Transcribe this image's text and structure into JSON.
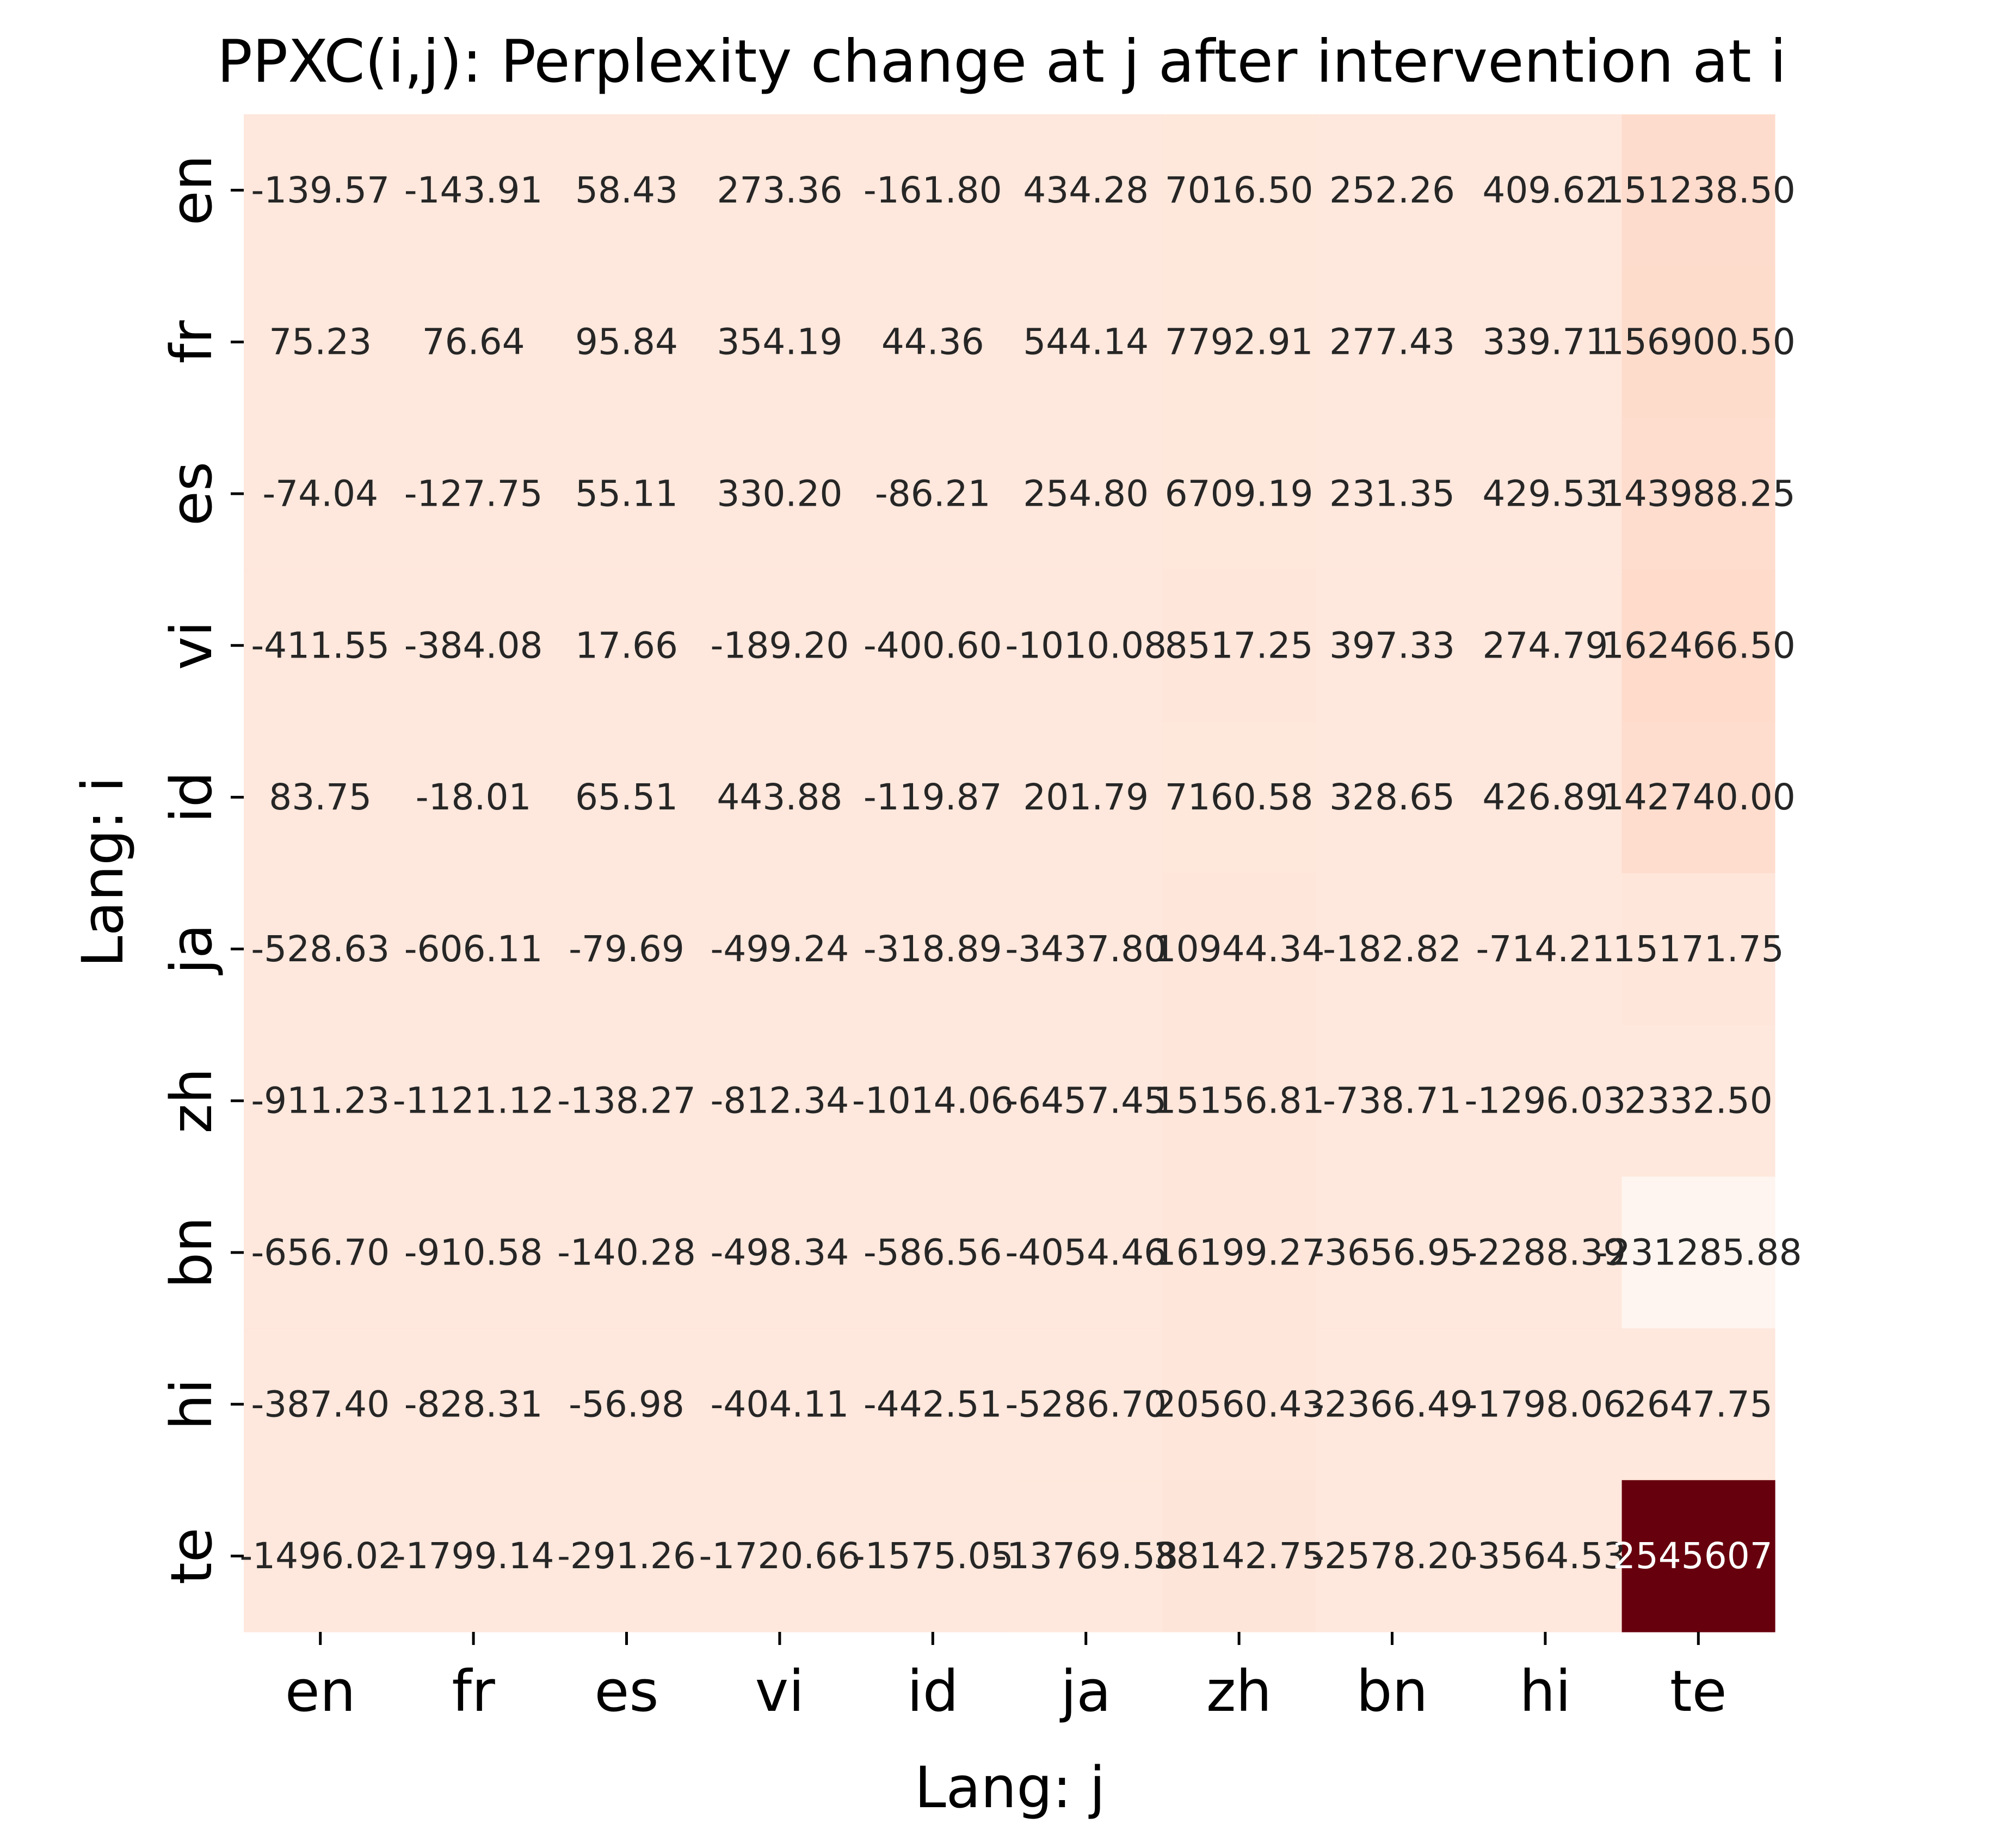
{
  "chart_data": {
    "type": "heatmap",
    "title": "PPXC(i,j): Perplexity change at j after intervention at i",
    "xlabel": "Lang: j",
    "ylabel": "Lang: i",
    "x_categories": [
      "en",
      "fr",
      "es",
      "vi",
      "id",
      "ja",
      "zh",
      "bn",
      "hi",
      "te"
    ],
    "y_categories": [
      "en",
      "fr",
      "es",
      "vi",
      "id",
      "ja",
      "zh",
      "bn",
      "hi",
      "te"
    ],
    "values": [
      [
        -139.57,
        -143.91,
        58.43,
        273.36,
        -161.8,
        434.28,
        7016.5,
        252.26,
        409.62,
        151238.5
      ],
      [
        75.23,
        76.64,
        95.84,
        354.19,
        44.36,
        544.14,
        7792.91,
        277.43,
        339.71,
        156900.5
      ],
      [
        -74.04,
        -127.75,
        55.11,
        330.2,
        -86.21,
        254.8,
        6709.19,
        231.35,
        429.53,
        143988.25
      ],
      [
        -411.55,
        -384.08,
        17.66,
        -189.2,
        -400.6,
        -1010.08,
        8517.25,
        397.33,
        274.79,
        162466.5
      ],
      [
        83.75,
        -18.01,
        65.51,
        443.88,
        -119.87,
        201.79,
        7160.58,
        328.65,
        426.89,
        142740.0
      ],
      [
        -528.63,
        -606.11,
        -79.69,
        -499.24,
        -318.89,
        -3437.8,
        10944.34,
        -182.82,
        -714.21,
        15171.75
      ],
      [
        -911.23,
        -1121.12,
        -138.27,
        -812.34,
        -1014.06,
        -6457.45,
        15156.81,
        -738.71,
        -1296.03,
        2332.5
      ],
      [
        -656.7,
        -910.58,
        -140.28,
        -498.34,
        -586.56,
        -4054.46,
        16199.27,
        -3656.95,
        -2288.39,
        -231285.88
      ],
      [
        -387.4,
        -828.31,
        -56.98,
        -404.11,
        -442.51,
        -5286.7,
        20560.43,
        -2366.49,
        -1798.06,
        2647.75
      ],
      [
        -1496.02,
        -1799.14,
        -291.26,
        -1720.66,
        -1575.05,
        -13769.58,
        38142.75,
        -2578.2,
        -3564.53,
        2545607.0
      ]
    ],
    "cell_labels": [
      [
        "-139.57",
        "-143.91",
        "58.43",
        "273.36",
        "-161.80",
        "434.28",
        "7016.50",
        "252.26",
        "409.62",
        "151238.50"
      ],
      [
        "75.23",
        "76.64",
        "95.84",
        "354.19",
        "44.36",
        "544.14",
        "7792.91",
        "277.43",
        "339.71",
        "156900.50"
      ],
      [
        "-74.04",
        "-127.75",
        "55.11",
        "330.20",
        "-86.21",
        "254.80",
        "6709.19",
        "231.35",
        "429.53",
        "143988.25"
      ],
      [
        "-411.55",
        "-384.08",
        "17.66",
        "-189.20",
        "-400.60",
        "-1010.08",
        "8517.25",
        "397.33",
        "274.79",
        "162466.50"
      ],
      [
        "83.75",
        "-18.01",
        "65.51",
        "443.88",
        "-119.87",
        "201.79",
        "7160.58",
        "328.65",
        "426.89",
        "142740.00"
      ],
      [
        "-528.63",
        "-606.11",
        "-79.69",
        "-499.24",
        "-318.89",
        "-3437.80",
        "10944.34",
        "-182.82",
        "-714.21",
        "15171.75"
      ],
      [
        "-911.23",
        "-1121.12",
        "-138.27",
        "-812.34",
        "-1014.06",
        "-6457.45",
        "15156.81",
        "-738.71",
        "-1296.03",
        "2332.50"
      ],
      [
        "-656.70",
        "-910.58",
        "-140.28",
        "-498.34",
        "-586.56",
        "-4054.46",
        "16199.27",
        "-3656.95",
        "-2288.39",
        "-231285.88"
      ],
      [
        "-387.40",
        "-828.31",
        "-56.98",
        "-404.11",
        "-442.51",
        "-5286.70",
        "20560.43",
        "-2366.49",
        "-1798.06",
        "2647.75"
      ],
      [
        "-1496.02",
        "-1799.14",
        "-291.26",
        "-1720.66",
        "-1575.05",
        "-13769.58",
        "38142.75",
        "-2578.20",
        "-3564.53",
        "2545607."
      ]
    ],
    "colormap": "Reds",
    "colorbar": false,
    "grid": false,
    "colors": {
      "low": "#fff5f0",
      "mid": "#fcbba1",
      "high": "#67000d",
      "dark_text": "#262626",
      "light_text": "#ffffff"
    }
  }
}
